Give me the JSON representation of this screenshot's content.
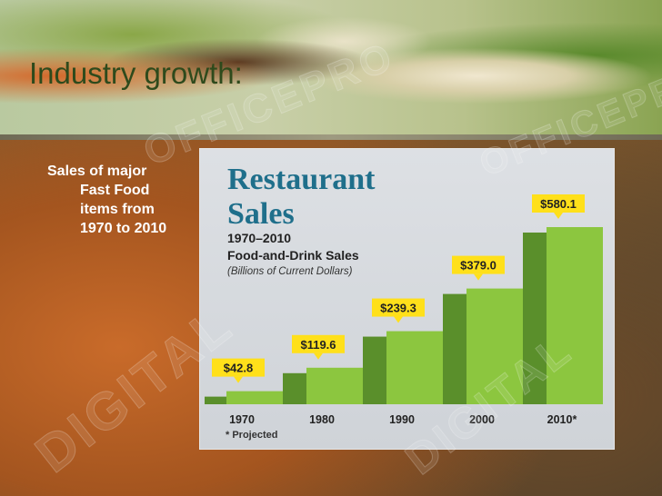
{
  "slide": {
    "title": "Industry growth:",
    "caption_lines": [
      "Sales of major",
      "Fast Food",
      "items from",
      "1970 to 2010"
    ]
  },
  "chart_data": {
    "type": "bar",
    "title": "Restaurant Sales",
    "subtitle": "1970–2010",
    "caption": "Food-and-Drink Sales",
    "units": "(Billions of Current Dollars)",
    "categories": [
      "1970",
      "1980",
      "1990",
      "2000",
      "2010*"
    ],
    "values": [
      42.8,
      119.6,
      239.3,
      379.0,
      580.1
    ],
    "data_labels": [
      "$42.8",
      "$119.6",
      "$239.3",
      "$379.0",
      "$580.1"
    ],
    "footnote": "* Projected",
    "colors": {
      "bar": "#8cc63f",
      "bar_shadow": "#5a8f2b",
      "label_bg": "#ffe01a",
      "title": "#1f6f8b",
      "text": "#222222"
    }
  },
  "watermark": {
    "text": "DIGITAL",
    "text_alt": "OFFICEPRO"
  }
}
